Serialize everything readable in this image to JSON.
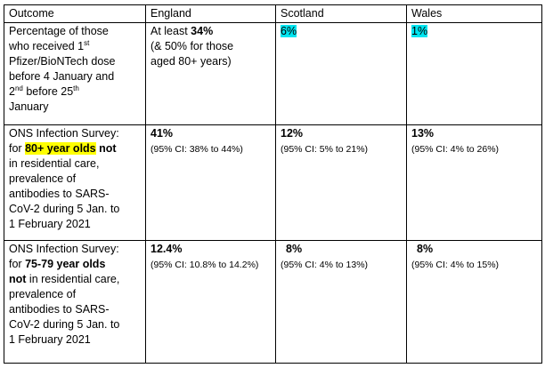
{
  "table": {
    "header": [
      "Outcome",
      "England",
      "Scotland",
      "Wales"
    ],
    "rows": [
      [
        [
          "Percentage of those",
          "who received 1",
          "st",
          "Pfizer/BioNTech dose",
          "before 4 January and",
          "2",
          "nd",
          " before 25",
          "th",
          "January"
        ],
        [
          "At least ",
          "34%",
          "(& 50% for those",
          "aged 80+ years)"
        ],
        [
          "6%"
        ],
        [
          "1%"
        ]
      ],
      [
        [
          "ONS Infection Survey:",
          "for ",
          "80+ year olds",
          " not",
          "in residential care,",
          "prevalence of",
          "antibodies to SARS-",
          "CoV-2 during 5 Jan. to",
          "1 February 2021"
        ],
        [
          "41%",
          "(95% CI: 38% to 44%)"
        ],
        [
          "12%",
          "(95% CI: 5% to 21%)"
        ],
        [
          "13%",
          "(95% CI: 4% to 26%)"
        ]
      ],
      [
        [
          "ONS Infection Survey:",
          "for ",
          "75-79 year olds",
          "not",
          " in residential care,",
          "prevalence of",
          "antibodies to SARS-",
          "CoV-2 during 5 Jan. to",
          "1 February 2021"
        ],
        [
          "12.4%",
          "(95% CI: 10.8% to 14.2%)"
        ],
        [
          "8%",
          "(95% CI: 4% to 13%)"
        ],
        [
          "8%",
          "(95% CI: 4% to 15%)"
        ]
      ]
    ]
  }
}
